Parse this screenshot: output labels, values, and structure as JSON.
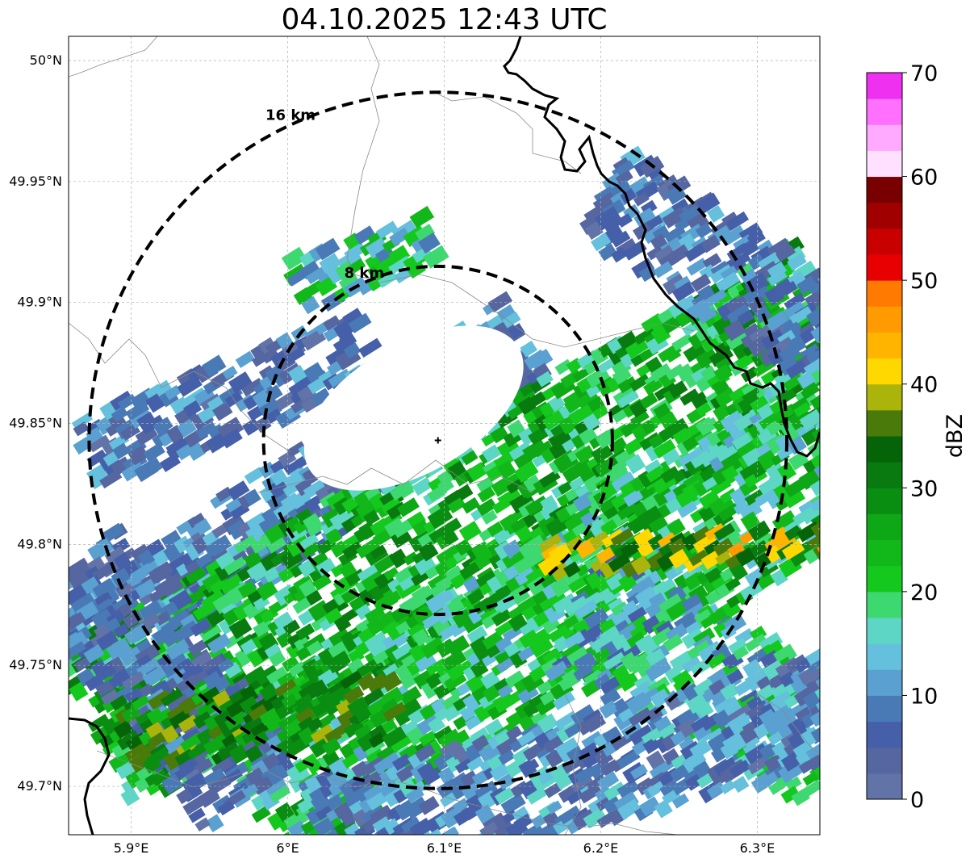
{
  "title": "04.10.2025 12:43 UTC",
  "map": {
    "lon_range": [
      5.86,
      6.34
    ],
    "lat_range": [
      49.68,
      50.01
    ],
    "lon_ticks": [
      {
        "value": 5.9,
        "label": "5.9°E"
      },
      {
        "value": 6.0,
        "label": "6°E"
      },
      {
        "value": 6.1,
        "label": "6.1°E"
      },
      {
        "value": 6.2,
        "label": "6.2°E"
      },
      {
        "value": 6.3,
        "label": "6.3°E"
      }
    ],
    "lat_ticks": [
      {
        "value": 50.0,
        "label": "50°N"
      },
      {
        "value": 49.95,
        "label": "49.95°N"
      },
      {
        "value": 49.9,
        "label": "49.9°N"
      },
      {
        "value": 49.85,
        "label": "49.85°N"
      },
      {
        "value": 49.8,
        "label": "49.8°N"
      },
      {
        "value": 49.75,
        "label": "49.75°N"
      },
      {
        "value": 49.7,
        "label": "49.7°N"
      }
    ],
    "center": {
      "lon": 6.096,
      "lat": 49.843
    },
    "rings": [
      {
        "radius_km": 8,
        "label": "8 km"
      },
      {
        "radius_km": 16,
        "label": "16 km"
      }
    ],
    "ring_color": "#000000",
    "grid": true
  },
  "colorbar": {
    "label": "dBZ",
    "min": 0,
    "max": 70,
    "tick_values": [
      0,
      10,
      20,
      30,
      40,
      50,
      60,
      70
    ],
    "tick_labels": [
      "0",
      "10",
      "20",
      "30",
      "40",
      "50",
      "60",
      "70"
    ],
    "colors": [
      "#6273a8",
      "#5566a0",
      "#4560a8",
      "#4a7ab5",
      "#5aa0d0",
      "#64c0dc",
      "#5dd6c6",
      "#3ed870",
      "#14c81e",
      "#12b81a",
      "#0ea816",
      "#0a8e12",
      "#087a10",
      "#066408",
      "#4a7a0a",
      "#aab40a",
      "#ffd800",
      "#ffb400",
      "#ff9a00",
      "#ff7a00",
      "#e80000",
      "#c80000",
      "#a00000",
      "#780000",
      "#ffe0ff",
      "#ffaaff",
      "#ff70ff",
      "#f030f0"
    ]
  }
}
